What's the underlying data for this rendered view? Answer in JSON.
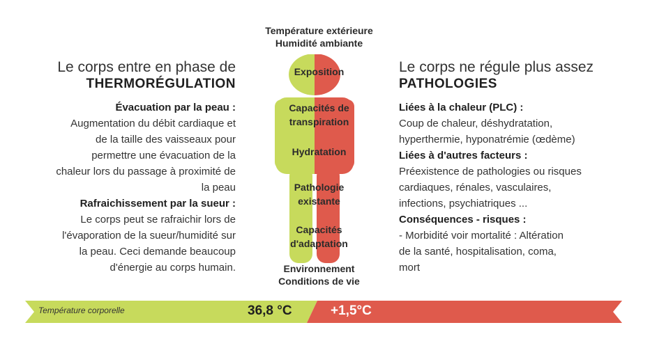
{
  "top": {
    "line1": "Température extérieure",
    "line2": "Humidité ambiante"
  },
  "figure": {
    "labels": {
      "exposition": "Exposition",
      "transpiration1": "Capacités de",
      "transpiration2": "transpiration",
      "hydratation": "Hydratation",
      "pathologie1": "Pathologie",
      "pathologie2": "existante",
      "adaptation1": "Capacités",
      "adaptation2": "d'adaptation"
    },
    "colors": {
      "green": "#c7da5c",
      "red": "#df5a4c"
    }
  },
  "bottom_label": {
    "line1": "Environnement",
    "line2": "Conditions de vie"
  },
  "left": {
    "heading": "Le corps entre en phase de",
    "subheading": "THERMORÉGULATION",
    "section1_title": "Évacuation par la peau :",
    "section1_lines": [
      "Augmentation du débit cardiaque et",
      "de la taille des vaisseaux pour",
      "permettre une évacuation de la",
      "chaleur lors du passage à proximité de",
      "la peau"
    ],
    "section2_title": "Rafraichissement par la sueur :",
    "section2_lines": [
      "Le corps peut se rafraichir lors de",
      "l'évaporation de la sueur/humidité sur",
      "la peau. Ceci demande beaucoup",
      "d'énergie au corps humain."
    ]
  },
  "right": {
    "heading": "Le corps ne régule plus assez",
    "subheading": "PATHOLOGIES",
    "section1_title": "Liées à la chaleur (PLC) :",
    "section1_lines": [
      "Coup de chaleur, déshydratation,",
      "hyperthermie, hyponatrémie (œdème)"
    ],
    "section2_title": "Liées à d'autres facteurs :",
    "section2_lines": [
      "Préexistence de pathologies ou risques",
      "cardiaques, rénales, vasculaires,",
      "infections, psychiatriques ..."
    ],
    "section3_title": "Conséquences - risques :",
    "section3_lines": [
      "- Morbidité voir mortalité : Altération",
      "de la santé, hospitalisation, coma,",
      "mort"
    ]
  },
  "bar": {
    "label": "Température corporelle",
    "normal_value": "36,8 °C",
    "delta_value": "+1,5°C",
    "green": "#c7da5c",
    "red": "#df5a4c"
  }
}
